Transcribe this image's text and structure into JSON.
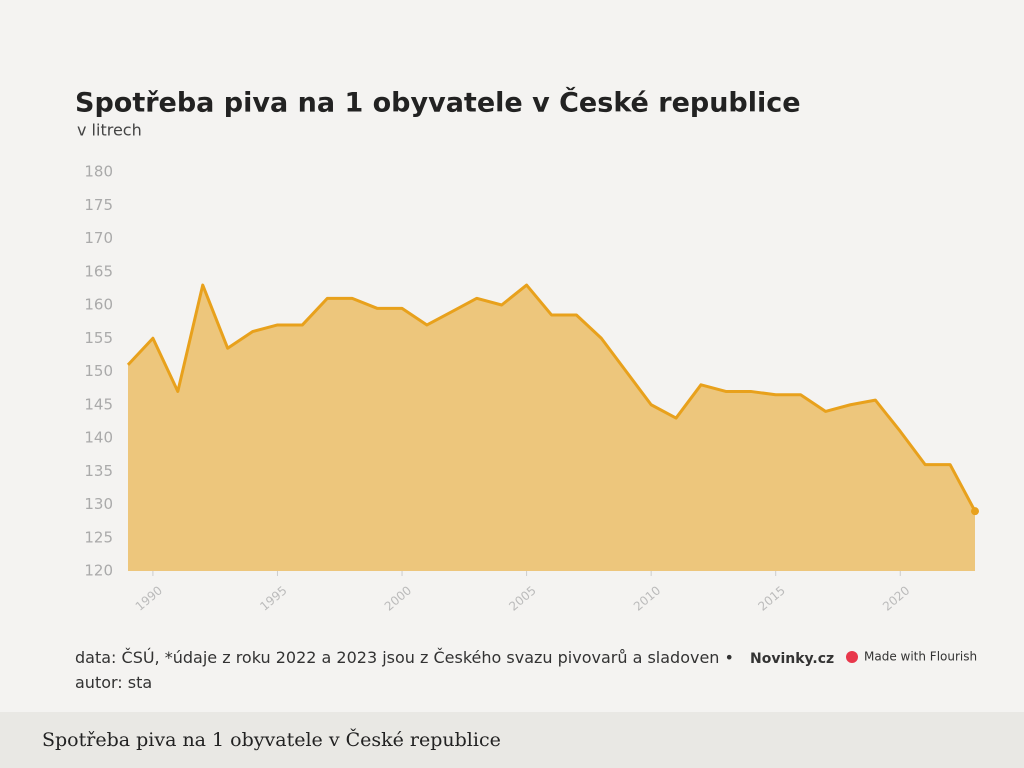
{
  "chart_data": {
    "type": "area",
    "title": "Spotřeba piva na 1 obyvatele v České republice",
    "subtitle": "v litrech",
    "x": [
      1989,
      1990,
      1991,
      1992,
      1993,
      1994,
      1995,
      1996,
      1997,
      1998,
      1999,
      2000,
      2001,
      2002,
      2003,
      2004,
      2005,
      2006,
      2007,
      2008,
      2009,
      2010,
      2011,
      2012,
      2013,
      2014,
      2015,
      2016,
      2017,
      2018,
      2019,
      2020,
      2021,
      2022,
      2023
    ],
    "values": [
      151,
      155,
      147,
      163,
      153.5,
      156,
      157,
      157,
      161,
      161,
      159.5,
      159.5,
      157,
      159,
      161,
      160,
      163,
      158.5,
      158.5,
      155,
      150,
      145,
      143,
      148,
      147,
      147,
      146.5,
      146.5,
      144,
      145,
      145.7,
      141,
      136,
      136,
      129
    ],
    "color": "#e8a11c",
    "xlim": [
      1989,
      2023
    ],
    "xticks": [
      1990,
      1995,
      2000,
      2005,
      2010,
      2015,
      2020
    ],
    "ylim": [
      120,
      180
    ],
    "yticks": [
      120,
      125,
      130,
      135,
      140,
      145,
      150,
      155,
      160,
      165,
      170,
      175,
      180
    ]
  },
  "source": "data: ČSÚ, *údaje z roku 2022 a 2023 jsou z Českého svazu pivovarů a sladoven • autor: sta",
  "brand": "Novinky.cz",
  "credit": "Made with Flourish",
  "caption": "Spotřeba piva na 1 obyvatele v České republice"
}
